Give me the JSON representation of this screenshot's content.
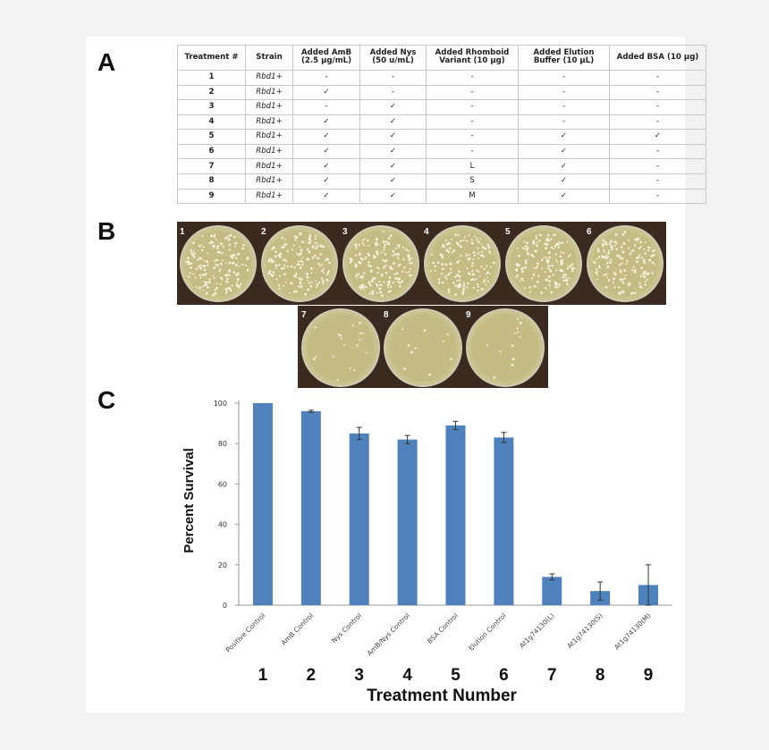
{
  "panels": {
    "a": "A",
    "b": "B",
    "c": "C"
  },
  "table": {
    "headers": [
      [
        "Treatment #",
        ""
      ],
      [
        "Strain",
        ""
      ],
      [
        "Added AmB",
        "(2.5 µg/mL)"
      ],
      [
        "Added Nys",
        "(50 u/mL)"
      ],
      [
        "Added Rhomboid",
        "Variant (10 µg)"
      ],
      [
        "Added Elution",
        "Buffer (10 µL)"
      ],
      [
        "Added BSA (10 µg)",
        ""
      ]
    ],
    "rows": [
      [
        "1",
        "Rbd1+",
        "-",
        "-",
        "-",
        "-",
        "-"
      ],
      [
        "2",
        "Rbd1+",
        "✓",
        "-",
        "-",
        "-",
        "-"
      ],
      [
        "3",
        "Rbd1+",
        "-",
        "✓",
        "-",
        "-",
        "-"
      ],
      [
        "4",
        "Rbd1+",
        "✓",
        "✓",
        "-",
        "-",
        "-"
      ],
      [
        "5",
        "Rbd1+",
        "✓",
        "✓",
        "-",
        "✓",
        "✓"
      ],
      [
        "6",
        "Rbd1+",
        "✓",
        "✓",
        "-",
        "✓",
        "-"
      ],
      [
        "7",
        "Rbd1+",
        "✓",
        "✓",
        "L",
        "✓",
        "-"
      ],
      [
        "8",
        "Rbd1+",
        "✓",
        "✓",
        "S",
        "✓",
        "-"
      ],
      [
        "9",
        "Rbd1+",
        "✓",
        "✓",
        "M",
        "✓",
        "-"
      ]
    ]
  },
  "plates": {
    "row1": [
      "1",
      "2",
      "3",
      "4",
      "5",
      "6"
    ],
    "row2": [
      "7",
      "8",
      "9"
    ]
  },
  "chart_data": {
    "type": "bar",
    "ylabel": "Percent Survival",
    "xlabel": "Treatment Number",
    "ylim": [
      0,
      100
    ],
    "yticks": [
      0,
      20,
      40,
      60,
      80,
      100
    ],
    "categories": [
      "Positive Control",
      "AmB Control",
      "Nys Control",
      "AmB/Nys Control",
      "BSA Control",
      "Elution Control",
      "At1g74130(L)",
      "At1g74130(S)",
      "At1g74130(M)"
    ],
    "numbers": [
      "1",
      "2",
      "3",
      "4",
      "5",
      "6",
      "7",
      "8",
      "9"
    ],
    "values": [
      100,
      96,
      85,
      82,
      89,
      83,
      14,
      7,
      10
    ],
    "errors": [
      0,
      0.5,
      3,
      2,
      2,
      2.5,
      1.5,
      4.5,
      10
    ],
    "bar_color": "#4f81bd",
    "grid": false
  }
}
